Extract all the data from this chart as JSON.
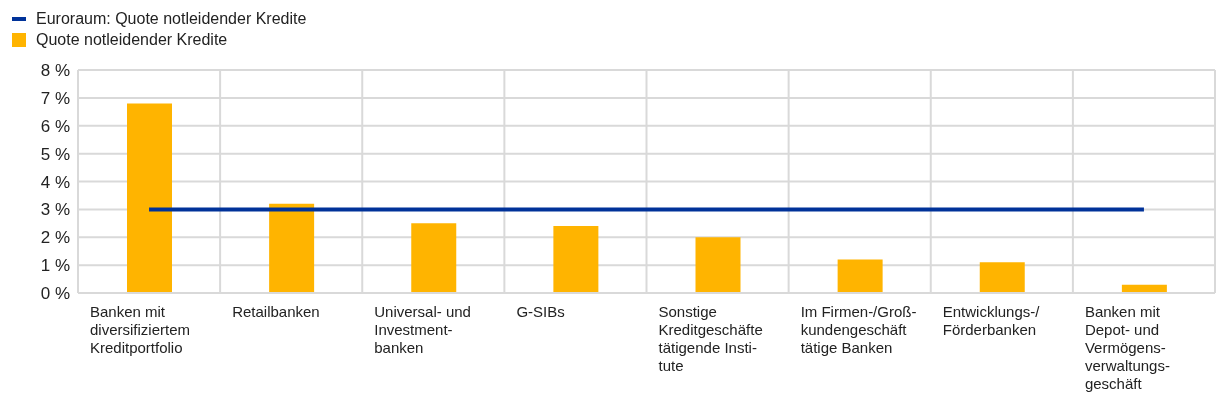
{
  "chart_data": {
    "type": "bar",
    "categories": [
      "Banken mit\ndiversifiziertem\nKreditportfolio",
      "Retailbanken",
      "Universal- und\nInvestment-\nbanken",
      "G-SIBs",
      "Sonstige\nKreditgeschäfte\ntätigende Insti-\ntute",
      "Im Firmen-/Groß-\nkundengeschäft\ntätige Banken",
      "Entwicklungs-/\nFörderbanken",
      "Banken mit\nDepot- und\nVermögens-\nverwaltungs-\ngeschäft"
    ],
    "series": [
      {
        "name": "Euroraum: Quote notleidender Kredite",
        "type": "line",
        "color": "#003299",
        "values": [
          3.0,
          3.0,
          3.0,
          3.0,
          3.0,
          3.0,
          3.0,
          3.0
        ]
      },
      {
        "name": "Quote notleidender Kredite",
        "color": "#ffb400",
        "values": [
          6.8,
          3.2,
          2.5,
          2.4,
          2.0,
          1.2,
          1.1,
          0.3
        ]
      }
    ],
    "ylim": [
      0,
      8
    ],
    "yticks": [
      {
        "value": 0,
        "label": "0 %"
      },
      {
        "value": 1,
        "label": "1 %"
      },
      {
        "value": 2,
        "label": "2 %"
      },
      {
        "value": 3,
        "label": "3 %"
      },
      {
        "value": 4,
        "label": "4 %"
      },
      {
        "value": 5,
        "label": "5 %"
      },
      {
        "value": 6,
        "label": "6 %"
      },
      {
        "value": 7,
        "label": "7 %"
      },
      {
        "value": 8,
        "label": "8 %"
      }
    ],
    "grid": true,
    "legend": "top left",
    "marker": "none"
  }
}
